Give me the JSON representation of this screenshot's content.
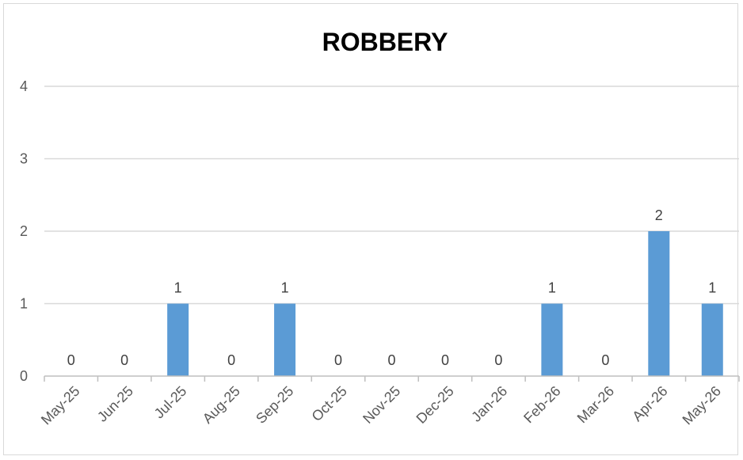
{
  "chart_data": {
    "type": "bar",
    "title": "ROBBERY",
    "xlabel": "",
    "ylabel": "",
    "categories": [
      "May-25",
      "Jun-25",
      "Jul-25",
      "Aug-25",
      "Sep-25",
      "Oct-25",
      "Nov-25",
      "Dec-25",
      "Jan-26",
      "Feb-26",
      "Mar-26",
      "Apr-26",
      "May-26"
    ],
    "values": [
      0,
      0,
      1,
      0,
      1,
      0,
      0,
      0,
      0,
      1,
      0,
      2,
      1
    ],
    "ylim": [
      0,
      4
    ],
    "yticks": [
      "0",
      "1",
      "2",
      "3",
      "4"
    ],
    "grid": true,
    "legend": "none",
    "data_labels": true,
    "colors": {
      "bar": "#5b9bd5",
      "grid": "#d9d9d9",
      "axis": "#bfbfbf"
    }
  }
}
